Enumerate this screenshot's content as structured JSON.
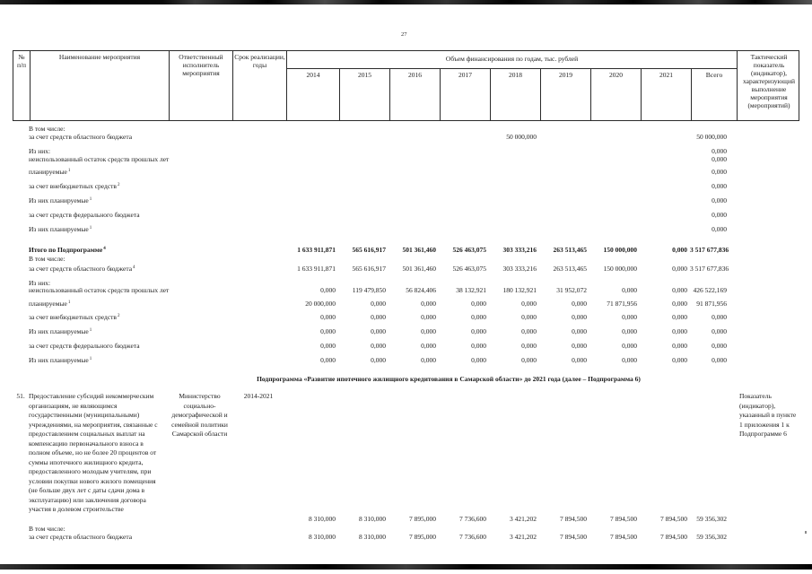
{
  "page": {
    "number": "27"
  },
  "table": {
    "header": {
      "col_num": "№\nп/п",
      "col_name": "Наименование мероприятия",
      "col_executor": "Ответственный исполнитель мероприятия",
      "col_term": "Срок реализации, годы",
      "finance_span": "Объем финансирования по годам, тыс. рублей",
      "years": [
        "2014",
        "2015",
        "2016",
        "2017",
        "2018",
        "2019",
        "2020",
        "2021",
        "Всего"
      ],
      "col_indicator": "Тактический показатель (индикатор), характеризующий выполнение мероприятия (мероприятий)"
    },
    "section_top": [
      {
        "label": "В том числе:",
        "values": []
      },
      {
        "label": "за счет средств областного бюджета",
        "values": [
          "",
          "",
          "",
          "",
          "50 000,000",
          "",
          "",
          "",
          "50 000,000"
        ]
      },
      {
        "label": "Из них:",
        "values": [
          "",
          "",
          "",
          "",
          "",
          "",
          "",
          "",
          "0,000"
        ]
      },
      {
        "label": "неиспользованный остаток средств прошлых лет",
        "values": [
          "",
          "",
          "",
          "",
          "",
          "",
          "",
          "",
          "0,000"
        ]
      },
      {
        "label": "планируемые",
        "sup": "1",
        "values": [
          "",
          "",
          "",
          "",
          "",
          "",
          "",
          "",
          "0,000"
        ]
      },
      {
        "label": "за счет внебюджетных средств",
        "sup": "2",
        "values": [
          "",
          "",
          "",
          "",
          "",
          "",
          "",
          "",
          "0,000"
        ]
      },
      {
        "label": "Из них планируемые",
        "sup": "1",
        "values": [
          "",
          "",
          "",
          "",
          "",
          "",
          "",
          "",
          "0,000"
        ]
      },
      {
        "label": "за счет средств федерального бюджета",
        "values": [
          "",
          "",
          "",
          "",
          "",
          "",
          "",
          "",
          "0,000"
        ]
      },
      {
        "label": "Из них планируемые",
        "sup": "1",
        "values": [
          "",
          "",
          "",
          "",
          "",
          "",
          "",
          "",
          "0,000"
        ]
      }
    ],
    "section_totals": [
      {
        "label": "Итого по Подпрограмме",
        "sup": "4",
        "bold": true,
        "values": [
          "1 633 911,871",
          "565 616,917",
          "501 361,460",
          "526 463,075",
          "303 333,216",
          "263 513,465",
          "150 000,000",
          "0,000",
          "3 517 677,836"
        ]
      },
      {
        "label": "В том числе:",
        "values": []
      },
      {
        "label": "за счет средств областного бюджета",
        "sup": "4",
        "values": [
          "1 633 911,871",
          "565 616,917",
          "501 361,460",
          "526 463,075",
          "303 333,216",
          "263 513,465",
          "150 000,000",
          "0,000",
          "3 517 677,836"
        ]
      },
      {
        "label": "Из них:",
        "values": []
      },
      {
        "label": "неиспользованный остаток средств прошлых лет",
        "values": [
          "0,000",
          "119 479,850",
          "56 824,406",
          "38 132,921",
          "180 132,921",
          "31 952,072",
          "0,000",
          "0,000",
          "426 522,169"
        ]
      },
      {
        "label": "планируемые",
        "sup": "1",
        "values": [
          "20 000,000",
          "0,000",
          "0,000",
          "0,000",
          "0,000",
          "0,000",
          "71 871,956",
          "0,000",
          "91 871,956"
        ]
      },
      {
        "label": "за счет внебюджетных средств",
        "sup": "2",
        "values": [
          "0,000",
          "0,000",
          "0,000",
          "0,000",
          "0,000",
          "0,000",
          "0,000",
          "0,000",
          "0,000"
        ]
      },
      {
        "label": "Из них планируемые",
        "sup": "1",
        "values": [
          "0,000",
          "0,000",
          "0,000",
          "0,000",
          "0,000",
          "0,000",
          "0,000",
          "0,000",
          "0,000"
        ]
      },
      {
        "label": "за счет средств федерального бюджета",
        "values": [
          "0,000",
          "0,000",
          "0,000",
          "0,000",
          "0,000",
          "0,000",
          "0,000",
          "0,000",
          "0,000"
        ]
      },
      {
        "label": "Из них планируемые",
        "sup": "1",
        "values": [
          "0,000",
          "0,000",
          "0,000",
          "0,000",
          "0,000",
          "0,000",
          "0,000",
          "0,000",
          "0,000"
        ]
      }
    ],
    "subprogram_heading": "Подпрограмма «Развитие ипотечного жилищного кредитования в Самарской области» до 2021 года (далее – Подпрограмма 6)",
    "row51": {
      "num": "51.",
      "name": "Предоставление субсидий некоммерческим организациям, не являющимся государственными (муниципальными) учреждениями, на мероприятия, связанные с предоставлением социальных выплат на компенсацию первоначального взноса в полном объеме, но не более 20 процентов от суммы ипотечного жилищного кредита, предоставленного молодым учителям, при условии покупки нового жилого помещения (не больше двух лет с даты сдачи дома в эксплуатацию) или заключения договора участия в долевом строительстве",
      "executor": "Министерство социально-демографической и семейной политики Самарской области",
      "term": "2014-2021",
      "values": [
        "8 310,000",
        "8 310,000",
        "7 895,000",
        "7 736,600",
        "3 421,202",
        "7 894,500",
        "7 894,500",
        "7 894,500",
        "59 356,302"
      ],
      "indicator": "Показатель (индикатор), указанный в пункте 1 приложения 1 к Подпрограмме 6"
    },
    "section_bottom": [
      {
        "label": "В том числе:",
        "values": []
      },
      {
        "label": "за счет средств областного бюджета",
        "values": [
          "8 310,000",
          "8 310,000",
          "7 895,000",
          "7 736,600",
          "3 421,202",
          "7 894,500",
          "7 894,500",
          "7 894,500",
          "59 356,302"
        ]
      }
    ]
  }
}
